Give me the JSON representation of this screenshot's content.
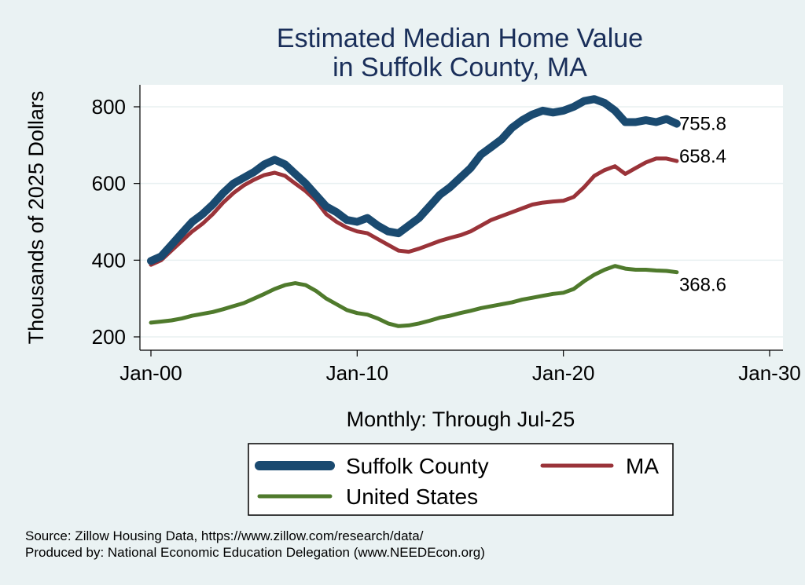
{
  "chart_data": {
    "type": "line",
    "title_lines": [
      "Estimated Median Home Value",
      "in Suffolk County, MA"
    ],
    "ylabel": "Thousands of 2025 Dollars",
    "xlabel": "Monthly: Through Jul-25",
    "x_ticks": [
      "Jan-00",
      "Jan-10",
      "Jan-20",
      "Jan-30"
    ],
    "y_ticks": [
      200,
      400,
      600,
      800
    ],
    "ylim": [
      175,
      855
    ],
    "xlim": [
      1999.5,
      2030.0
    ],
    "grid": true,
    "legend_position": "bottom",
    "colors": {
      "background": "#eaf2f3",
      "plot_background": "#ffffff",
      "title": "#1a2f5a"
    },
    "series": [
      {
        "name": "Suffolk County",
        "color": "#1a4a70",
        "end_label": "755.8",
        "x": [
          2000.0,
          2000.5,
          2001.0,
          2001.5,
          2002.0,
          2002.5,
          2003.0,
          2003.5,
          2004.0,
          2004.5,
          2005.0,
          2005.5,
          2006.0,
          2006.5,
          2007.0,
          2007.5,
          2008.0,
          2008.5,
          2009.0,
          2009.5,
          2010.0,
          2010.5,
          2011.0,
          2011.5,
          2012.0,
          2012.5,
          2013.0,
          2013.5,
          2014.0,
          2014.5,
          2015.0,
          2015.5,
          2016.0,
          2016.5,
          2017.0,
          2017.5,
          2018.0,
          2018.5,
          2019.0,
          2019.5,
          2020.0,
          2020.5,
          2021.0,
          2021.5,
          2022.0,
          2022.5,
          2023.0,
          2023.5,
          2024.0,
          2024.5,
          2025.0,
          2025.5
        ],
        "values": [
          398,
          410,
          440,
          470,
          500,
          520,
          545,
          575,
          600,
          615,
          630,
          650,
          662,
          650,
          625,
          600,
          570,
          540,
          525,
          505,
          500,
          510,
          490,
          475,
          470,
          490,
          510,
          540,
          570,
          590,
          615,
          640,
          675,
          695,
          715,
          745,
          765,
          780,
          790,
          785,
          790,
          800,
          815,
          820,
          810,
          790,
          760,
          760,
          765,
          760,
          768,
          755.8
        ]
      },
      {
        "name": "MA",
        "color": "#9a3339",
        "end_label": "658.4",
        "x": [
          2000.0,
          2000.5,
          2001.0,
          2001.5,
          2002.0,
          2002.5,
          2003.0,
          2003.5,
          2004.0,
          2004.5,
          2005.0,
          2005.5,
          2006.0,
          2006.5,
          2007.0,
          2007.5,
          2008.0,
          2008.5,
          2009.0,
          2009.5,
          2010.0,
          2010.5,
          2011.0,
          2011.5,
          2012.0,
          2012.5,
          2013.0,
          2013.5,
          2014.0,
          2014.5,
          2015.0,
          2015.5,
          2016.0,
          2016.5,
          2017.0,
          2017.5,
          2018.0,
          2018.5,
          2019.0,
          2019.5,
          2020.0,
          2020.5,
          2021.0,
          2021.5,
          2022.0,
          2022.5,
          2023.0,
          2023.5,
          2024.0,
          2024.5,
          2025.0,
          2025.5
        ],
        "values": [
          388,
          400,
          425,
          450,
          475,
          495,
          520,
          550,
          575,
          595,
          610,
          622,
          628,
          620,
          600,
          580,
          555,
          520,
          500,
          485,
          475,
          470,
          455,
          440,
          425,
          422,
          430,
          440,
          450,
          458,
          465,
          475,
          490,
          505,
          515,
          525,
          535,
          545,
          550,
          553,
          555,
          565,
          590,
          620,
          635,
          645,
          625,
          640,
          655,
          665,
          665,
          658.4
        ]
      },
      {
        "name": "United States",
        "color": "#4f7a2c",
        "end_label": "368.6",
        "x": [
          2000.0,
          2000.5,
          2001.0,
          2001.5,
          2002.0,
          2002.5,
          2003.0,
          2003.5,
          2004.0,
          2004.5,
          2005.0,
          2005.5,
          2006.0,
          2006.5,
          2007.0,
          2007.5,
          2008.0,
          2008.5,
          2009.0,
          2009.5,
          2010.0,
          2010.5,
          2011.0,
          2011.5,
          2012.0,
          2012.5,
          2013.0,
          2013.5,
          2014.0,
          2014.5,
          2015.0,
          2015.5,
          2016.0,
          2016.5,
          2017.0,
          2017.5,
          2018.0,
          2018.5,
          2019.0,
          2019.5,
          2020.0,
          2020.5,
          2021.0,
          2021.5,
          2022.0,
          2022.5,
          2023.0,
          2023.5,
          2024.0,
          2024.5,
          2025.0,
          2025.5
        ],
        "values": [
          237,
          240,
          243,
          248,
          255,
          260,
          265,
          272,
          280,
          288,
          300,
          312,
          325,
          335,
          340,
          335,
          320,
          300,
          285,
          270,
          262,
          258,
          248,
          235,
          228,
          230,
          235,
          242,
          250,
          255,
          262,
          268,
          275,
          280,
          285,
          290,
          297,
          302,
          307,
          312,
          315,
          325,
          345,
          362,
          375,
          385,
          378,
          375,
          375,
          373,
          372,
          368.6
        ]
      }
    ]
  },
  "source_lines": [
    "Source: Zillow Housing Data, https://www.zillow.com/research/data/",
    "Produced by: National Economic Education Delegation (www.NEEDEcon.org)"
  ]
}
